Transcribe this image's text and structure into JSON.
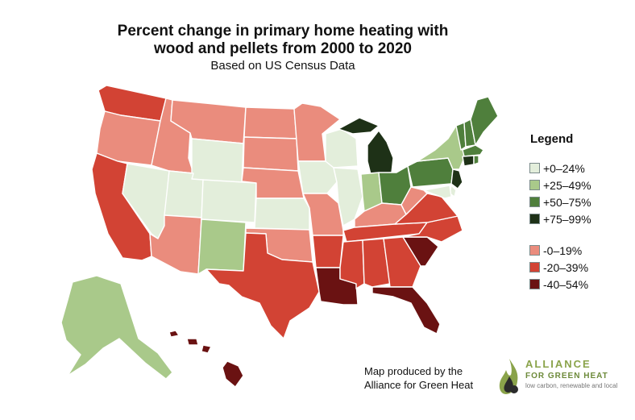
{
  "title": "Percent change in primary home heating with wood and pellets from 2000 to 2020",
  "subtitle": "Based on US Census Data",
  "legend": {
    "title": "Legend",
    "items": [
      {
        "label": "+0–24%",
        "color": "#e3eedb"
      },
      {
        "label": "+25–49%",
        "color": "#a9c98a"
      },
      {
        "label": "+50–75%",
        "color": "#4f7f3c"
      },
      {
        "label": "+75–99%",
        "color": "#1e3117"
      },
      {
        "label": "-0–19%",
        "color": "#ea8c7d"
      },
      {
        "label": "-20–39%",
        "color": "#d24334"
      },
      {
        "label": "-40–54%",
        "color": "#6a1212"
      }
    ]
  },
  "states": {
    "WA": "-20–39%",
    "OR": "-0–19%",
    "CA": "-20–39%",
    "NV": "+0–24%",
    "ID": "-0–19%",
    "MT": "-0–19%",
    "WY": "+0–24%",
    "UT": "+0–24%",
    "AZ": "-0–19%",
    "CO": "+0–24%",
    "NM": "+25–49%",
    "ND": "-0–19%",
    "SD": "-0–19%",
    "NE": "-0–19%",
    "KS": "+0–24%",
    "OK": "-0–19%",
    "TX": "-20–39%",
    "MN": "-0–19%",
    "IA": "+0–24%",
    "MO": "-0–19%",
    "AR": "-20–39%",
    "LA": "-40–54%",
    "WI": "+0–24%",
    "IL": "+0–24%",
    "MI": "+75–99%",
    "IN": "+25–49%",
    "OH": "+50–75%",
    "KY": "-0–19%",
    "TN": "-20–39%",
    "MS": "-20–39%",
    "AL": "-20–39%",
    "GA": "-20–39%",
    "FL": "-40–54%",
    "SC": "-40–54%",
    "NC": "-20–39%",
    "VA": "-20–39%",
    "WV": "-0–19%",
    "PA": "+50–75%",
    "NY": "+25–49%",
    "VT": "+50–75%",
    "NH": "+50–75%",
    "ME": "+50–75%",
    "MA": "+50–75%",
    "CT": "+75–99%",
    "RI": "+50–75%",
    "NJ": "+75–99%",
    "DE": "+0–24%",
    "MD": "+0–24%",
    "AK": "+25–49%",
    "HI": "-40–54%"
  },
  "credit": {
    "line1": "Map produced by the",
    "line2": "Alliance for Green Heat"
  },
  "logo": {
    "name": "ALLIANCE",
    "name2": "FOR GREEN HEAT",
    "tagline": "low carbon, renewable and local"
  }
}
